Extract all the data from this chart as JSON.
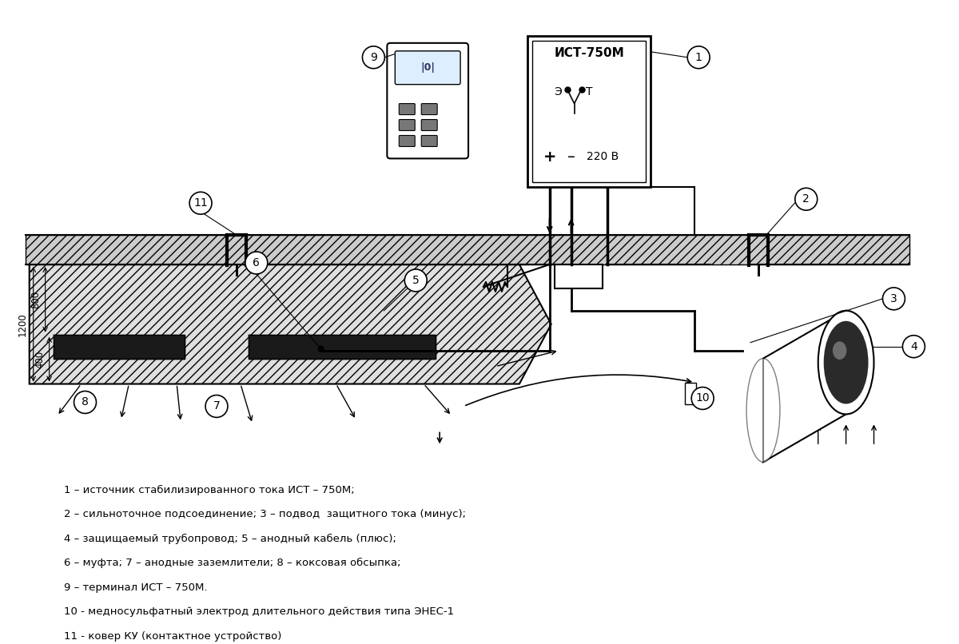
{
  "bg_color": "#ffffff",
  "legend_lines": [
    "1 – источник стабилизированного тока ИСТ – 750М;",
    "2 – сильноточное подсоединение; 3 – подвод  защитного тока (минус);",
    "4 – защищаемый трубопровод; 5 – анодный кабель (плюс);",
    "6 – муфта; 7 – анодные заземлители; 8 – коксовая обсыпка;",
    "9 – терминал ИСТ – 750М.",
    "10 - медносульфатный электрод длительного действия типа ЭНЕС-1",
    "11 - ковер КУ (контактное устройство)"
  ]
}
